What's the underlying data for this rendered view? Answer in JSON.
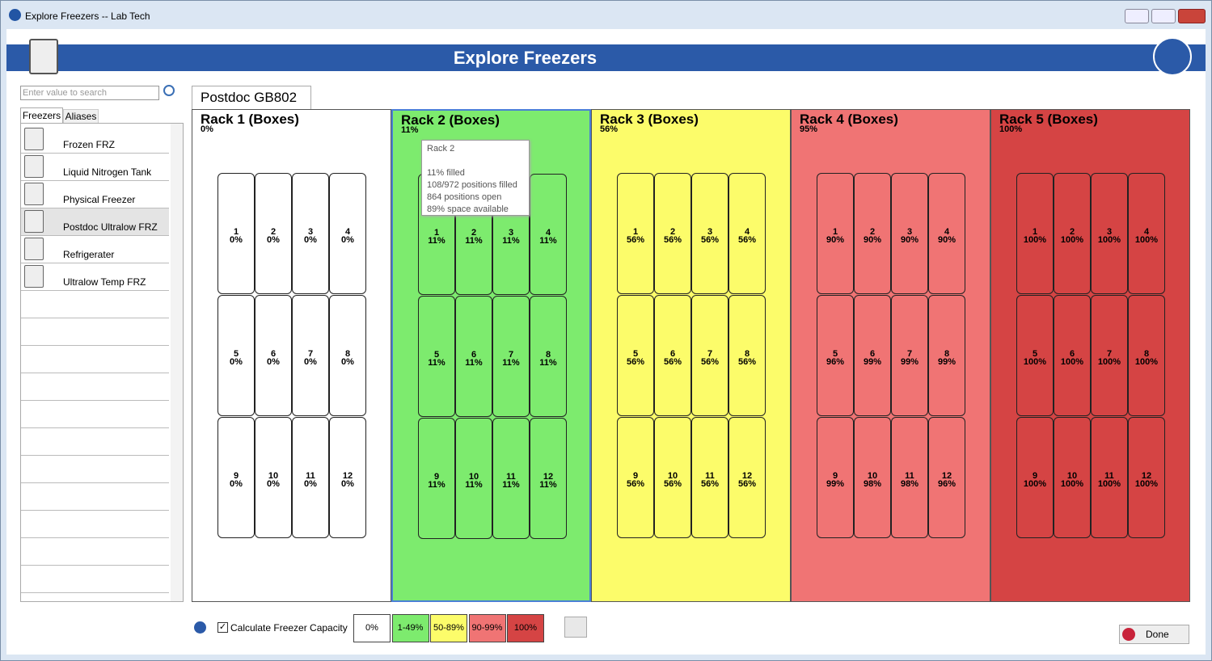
{
  "window": {
    "title": "Explore Freezers -- Lab Tech"
  },
  "header": {
    "title": "Explore Freezers"
  },
  "search": {
    "placeholder": "Enter value to search"
  },
  "tabs": [
    "Freezers",
    "Aliases"
  ],
  "freezers": [
    "Frozen FRZ",
    "Liquid Nitrogen Tank",
    "Physical Freezer",
    "Postdoc Ultralow FRZ",
    "Refrigerater",
    "Ultralow Temp FRZ"
  ],
  "selected_freezer": "Postdoc GB802",
  "racks": [
    {
      "name": "Rack 1 (Boxes)",
      "fill": "0%",
      "boxes": [
        {
          "id": 1,
          "fill": "0%"
        },
        {
          "id": 2,
          "fill": "0%"
        },
        {
          "id": 3,
          "fill": "0%"
        },
        {
          "id": 4,
          "fill": "0%"
        },
        {
          "id": 5,
          "fill": "0%"
        },
        {
          "id": 6,
          "fill": "0%"
        },
        {
          "id": 7,
          "fill": "0%"
        },
        {
          "id": 8,
          "fill": "0%"
        },
        {
          "id": 9,
          "fill": "0%"
        },
        {
          "id": 10,
          "fill": "0%"
        },
        {
          "id": 11,
          "fill": "0%"
        },
        {
          "id": 12,
          "fill": "0%"
        }
      ]
    },
    {
      "name": "Rack 2 (Boxes)",
      "fill": "11%",
      "boxes": [
        {
          "id": 1,
          "fill": "11%"
        },
        {
          "id": 2,
          "fill": "11%"
        },
        {
          "id": 3,
          "fill": "11%"
        },
        {
          "id": 4,
          "fill": "11%"
        },
        {
          "id": 5,
          "fill": "11%"
        },
        {
          "id": 6,
          "fill": "11%"
        },
        {
          "id": 7,
          "fill": "11%"
        },
        {
          "id": 8,
          "fill": "11%"
        },
        {
          "id": 9,
          "fill": "11%"
        },
        {
          "id": 10,
          "fill": "11%"
        },
        {
          "id": 11,
          "fill": "11%"
        },
        {
          "id": 12,
          "fill": "11%"
        }
      ]
    },
    {
      "name": "Rack 3 (Boxes)",
      "fill": "56%",
      "boxes": [
        {
          "id": 1,
          "fill": "56%"
        },
        {
          "id": 2,
          "fill": "56%"
        },
        {
          "id": 3,
          "fill": "56%"
        },
        {
          "id": 4,
          "fill": "56%"
        },
        {
          "id": 5,
          "fill": "56%"
        },
        {
          "id": 6,
          "fill": "56%"
        },
        {
          "id": 7,
          "fill": "56%"
        },
        {
          "id": 8,
          "fill": "56%"
        },
        {
          "id": 9,
          "fill": "56%"
        },
        {
          "id": 10,
          "fill": "56%"
        },
        {
          "id": 11,
          "fill": "56%"
        },
        {
          "id": 12,
          "fill": "56%"
        }
      ]
    },
    {
      "name": "Rack 4 (Boxes)",
      "fill": "95%",
      "boxes": [
        {
          "id": 1,
          "fill": "90%"
        },
        {
          "id": 2,
          "fill": "90%"
        },
        {
          "id": 3,
          "fill": "90%"
        },
        {
          "id": 4,
          "fill": "90%"
        },
        {
          "id": 5,
          "fill": "96%"
        },
        {
          "id": 6,
          "fill": "99%"
        },
        {
          "id": 7,
          "fill": "99%"
        },
        {
          "id": 8,
          "fill": "99%"
        },
        {
          "id": 9,
          "fill": "99%"
        },
        {
          "id": 10,
          "fill": "98%"
        },
        {
          "id": 11,
          "fill": "98%"
        },
        {
          "id": 12,
          "fill": "96%"
        }
      ]
    },
    {
      "name": "Rack 5 (Boxes)",
      "fill": "100%",
      "boxes": [
        {
          "id": 1,
          "fill": "100%"
        },
        {
          "id": 2,
          "fill": "100%"
        },
        {
          "id": 3,
          "fill": "100%"
        },
        {
          "id": 4,
          "fill": "100%"
        },
        {
          "id": 5,
          "fill": "100%"
        },
        {
          "id": 6,
          "fill": "100%"
        },
        {
          "id": 7,
          "fill": "100%"
        },
        {
          "id": 8,
          "fill": "100%"
        },
        {
          "id": 9,
          "fill": "100%"
        },
        {
          "id": 10,
          "fill": "100%"
        },
        {
          "id": 11,
          "fill": "100%"
        },
        {
          "id": 12,
          "fill": "100%"
        }
      ]
    }
  ],
  "tooltip": {
    "title": "Rack 2",
    "lines": [
      "11% filled",
      "108/972 positions filled",
      "864 positions open",
      "89% space available"
    ]
  },
  "footer": {
    "checkbox": "Calculate Freezer Capacity",
    "legend": [
      "0%",
      "1-49%",
      "50-89%",
      "90-99%",
      "100%"
    ],
    "done": "Done"
  }
}
